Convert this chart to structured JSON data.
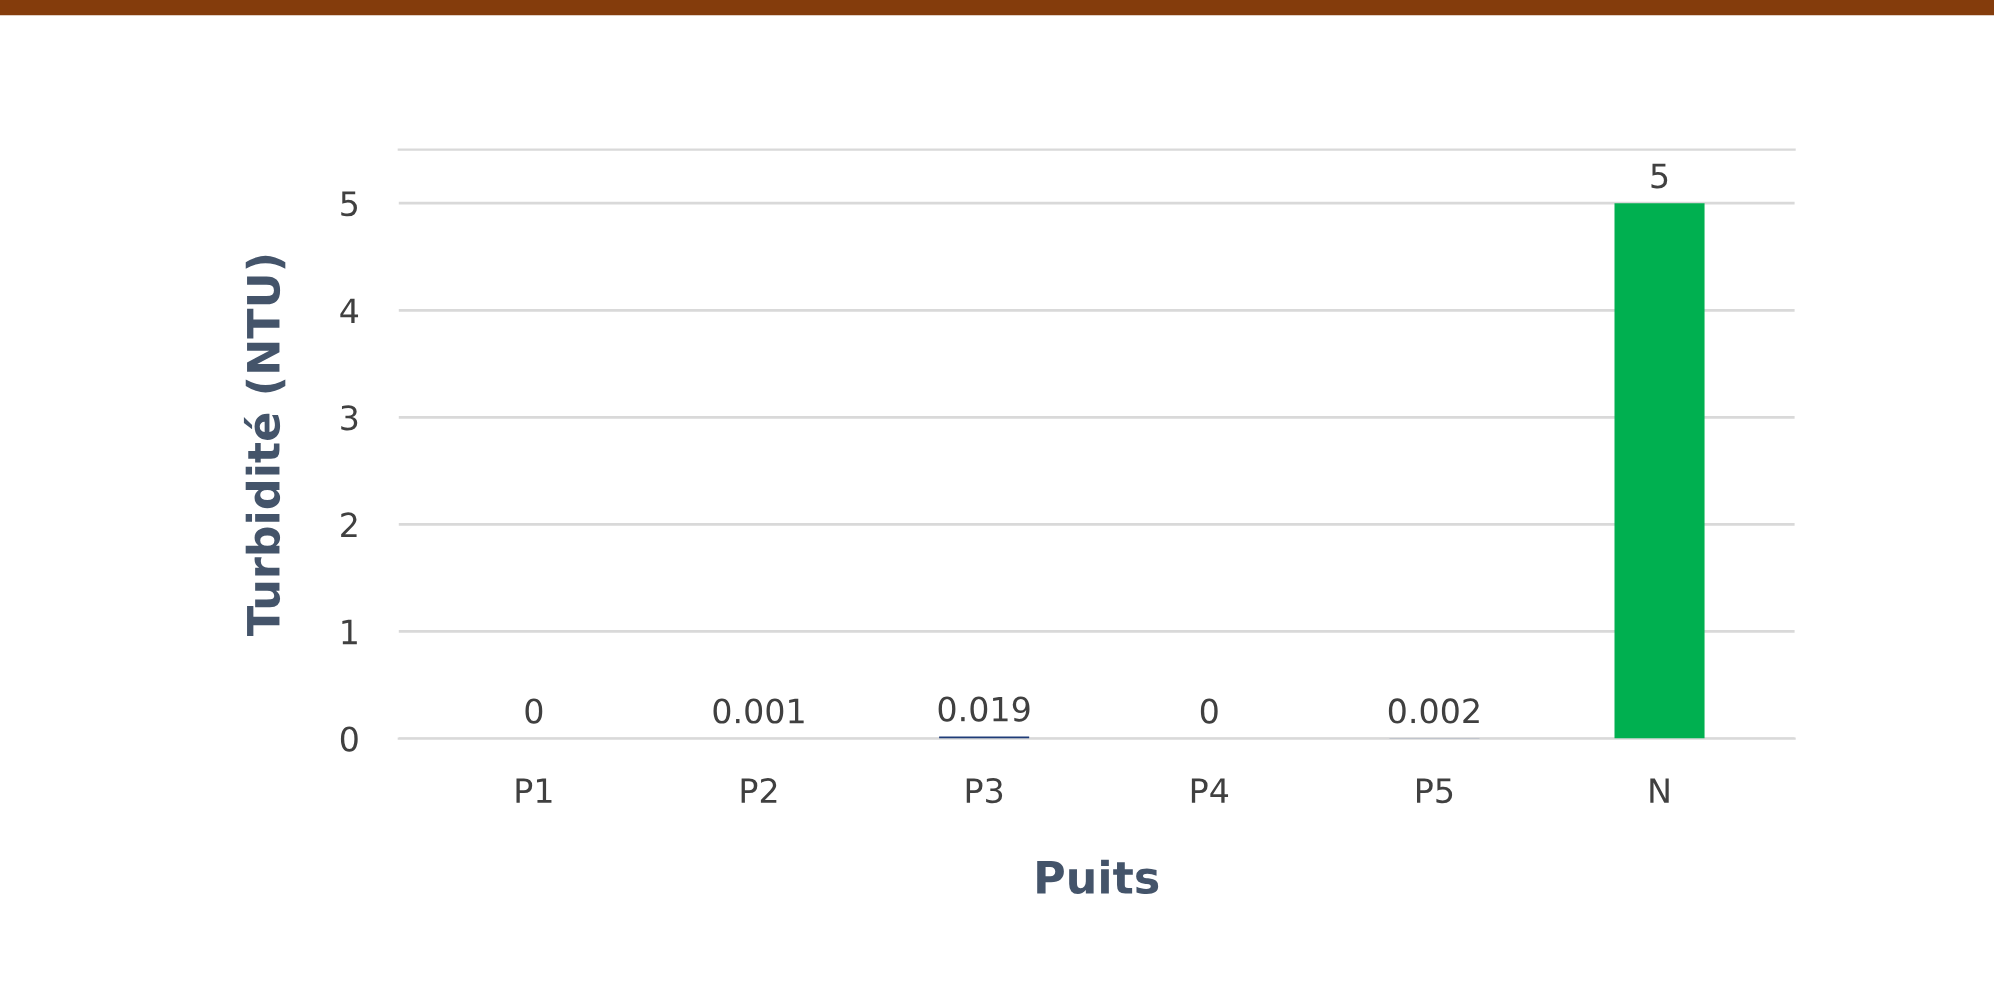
{
  "chart_data": {
    "type": "bar",
    "xlabel": "Puits",
    "ylabel": "Turbidité (NTU)",
    "categories": [
      "P1",
      "P2",
      "P3",
      "P4",
      "P5",
      "N"
    ],
    "values": [
      0,
      0.001,
      0.019,
      0,
      0.002,
      5
    ],
    "colors": [
      "#1f3c78",
      "#1f3c78",
      "#1f3c78",
      "#1f3c78",
      "#1f3c78",
      "#00b050"
    ],
    "ylim": [
      0,
      5.5
    ],
    "yticks": [
      0,
      1,
      2,
      3,
      4,
      5
    ],
    "grid": "y",
    "data_labels": true,
    "legend": false
  }
}
